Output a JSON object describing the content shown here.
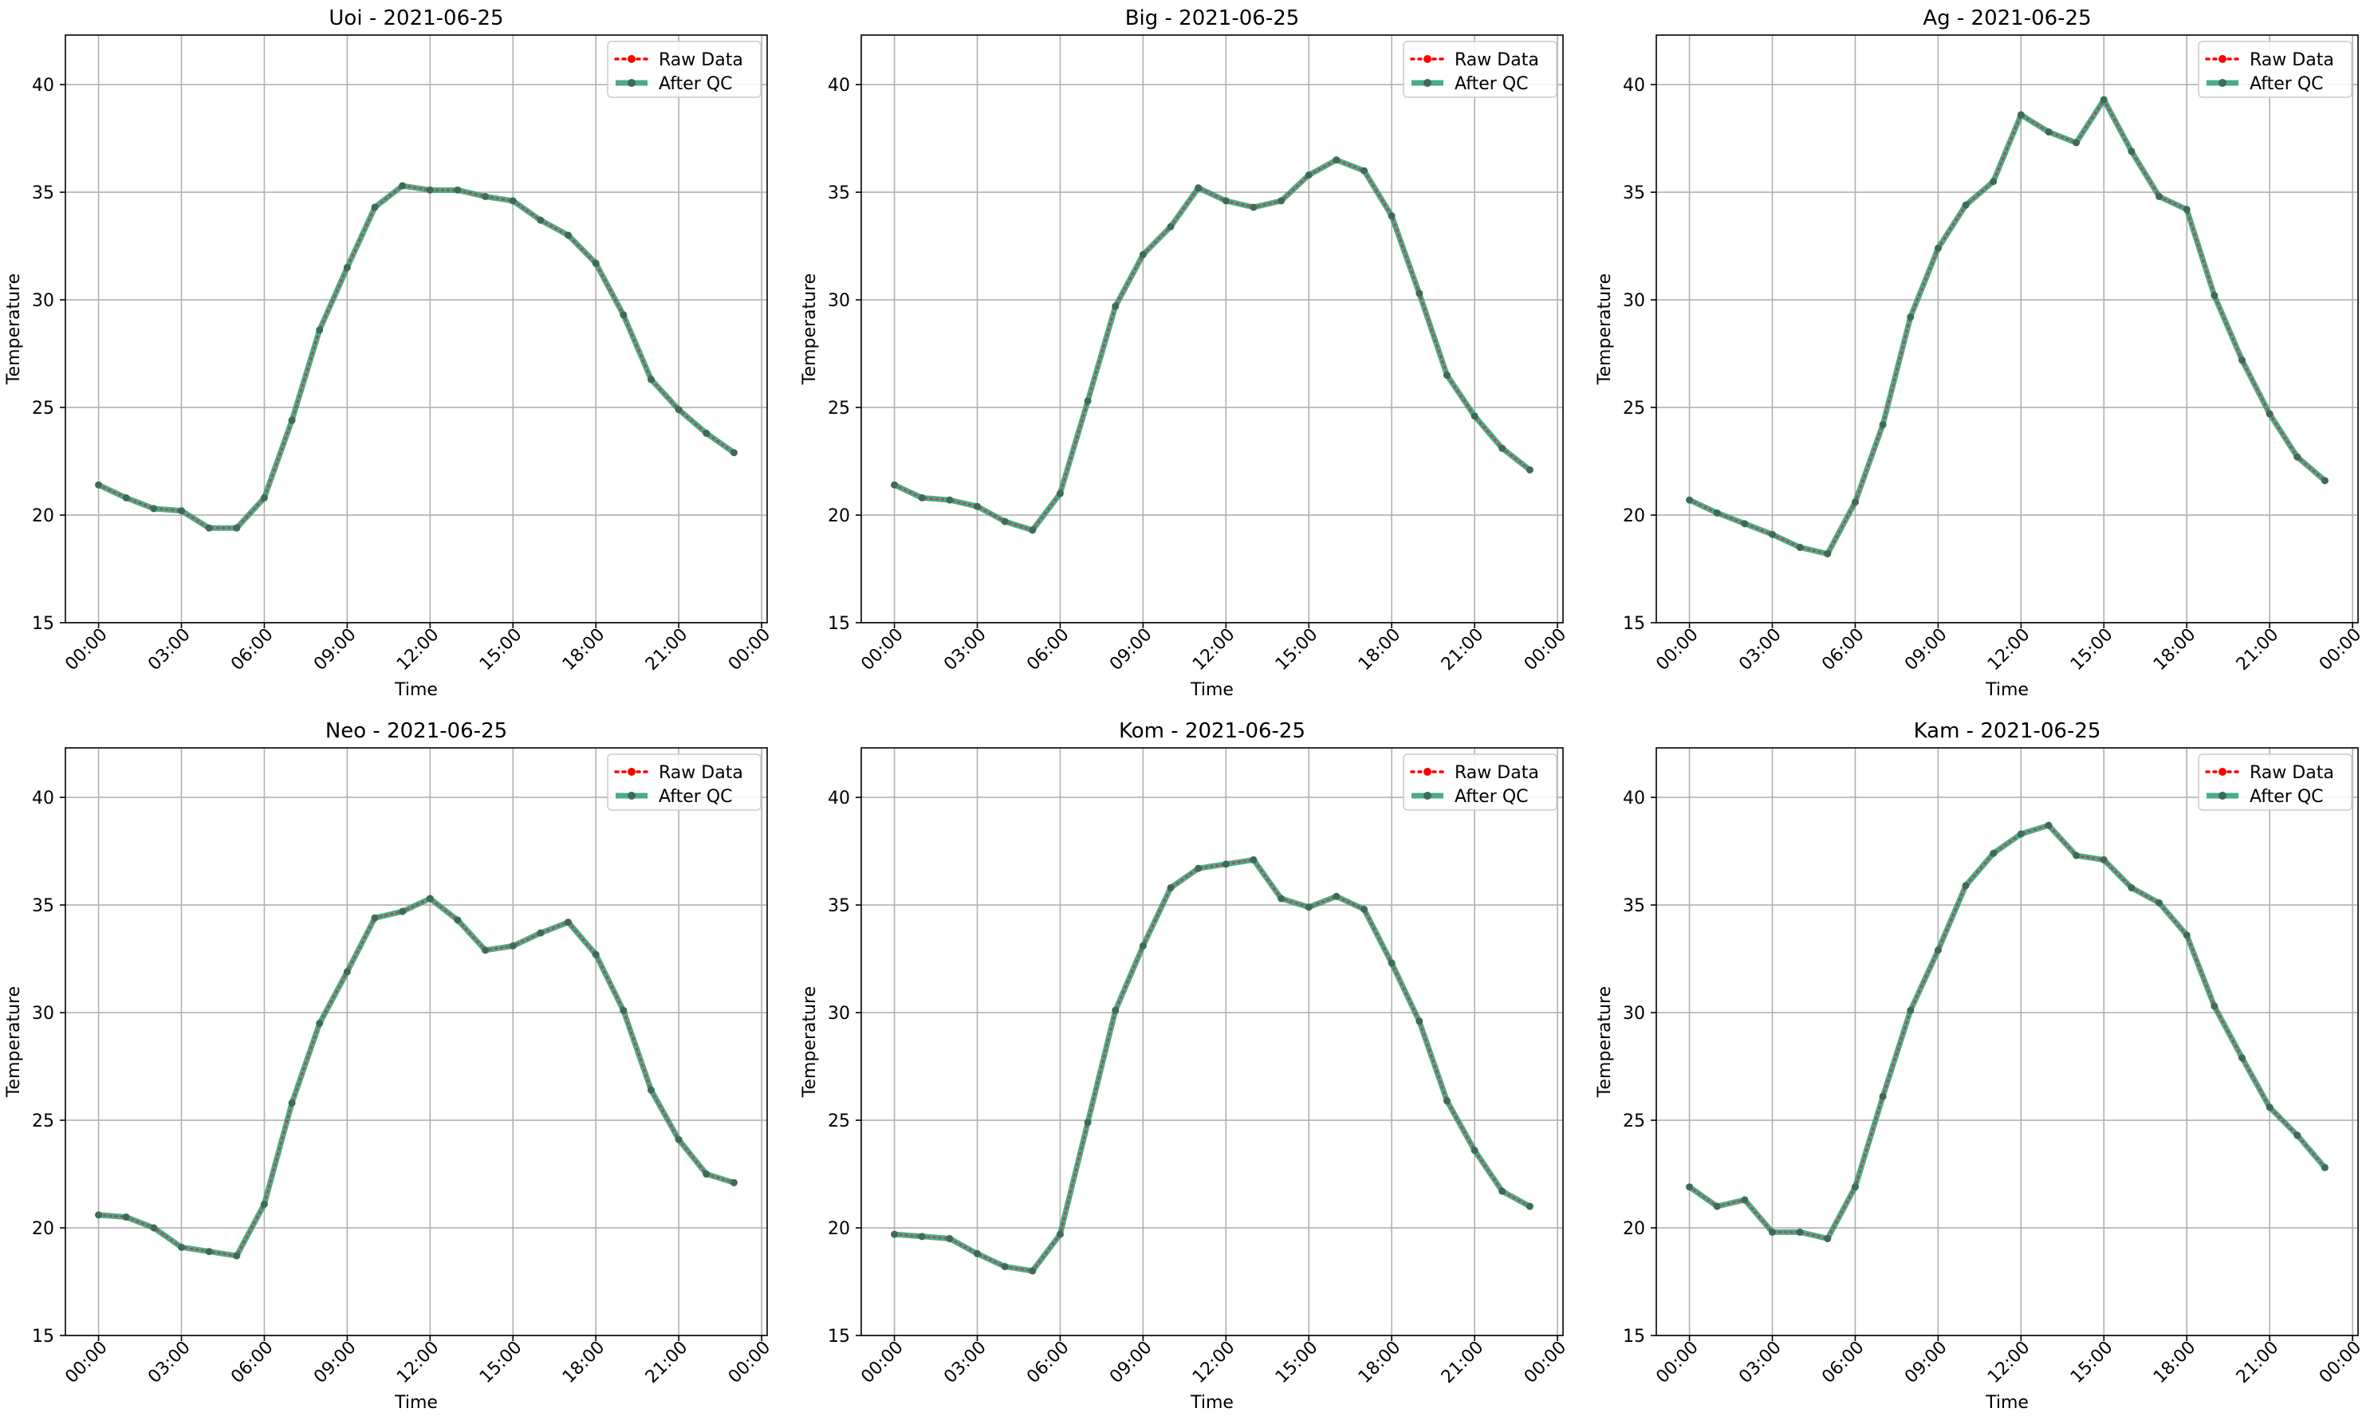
{
  "chart_data": [
    {
      "type": "line",
      "title": "Uoi - 2021-06-25",
      "xlabel": "Time",
      "ylabel": "Temperature",
      "x": [
        0,
        1,
        2,
        3,
        4,
        5,
        6,
        7,
        8,
        9,
        10,
        11,
        12,
        13,
        14,
        15,
        16,
        17,
        18,
        19,
        20,
        21,
        22,
        23
      ],
      "xticks": [
        "00:00",
        "03:00",
        "06:00",
        "09:00",
        "12:00",
        "15:00",
        "18:00",
        "21:00",
        "00:00"
      ],
      "yticks": [
        15,
        20,
        25,
        30,
        35,
        40
      ],
      "ylim": [
        15,
        42.3
      ],
      "grid": true,
      "legend": "top-right",
      "series": [
        {
          "name": "Raw Data",
          "color": "#ff0000",
          "style": "dotted",
          "values": [
            21.4,
            20.8,
            20.3,
            20.2,
            19.4,
            19.4,
            20.8,
            24.4,
            28.6,
            31.5,
            34.3,
            35.3,
            35.1,
            35.1,
            34.8,
            34.6,
            33.7,
            33.0,
            31.7,
            29.3,
            26.3,
            24.9,
            23.8,
            22.9
          ]
        },
        {
          "name": "After QC",
          "color": "#2a9d7a",
          "style": "solid",
          "values": [
            21.4,
            20.8,
            20.3,
            20.2,
            19.4,
            19.4,
            20.8,
            24.4,
            28.6,
            31.5,
            34.3,
            35.3,
            35.1,
            35.1,
            34.8,
            34.6,
            33.7,
            33.0,
            31.7,
            29.3,
            26.3,
            24.9,
            23.8,
            22.9
          ]
        }
      ]
    },
    {
      "type": "line",
      "title": "Big - 2021-06-25",
      "xlabel": "Time",
      "ylabel": "Temperature",
      "x": [
        0,
        1,
        2,
        3,
        4,
        5,
        6,
        7,
        8,
        9,
        10,
        11,
        12,
        13,
        14,
        15,
        16,
        17,
        18,
        19,
        20,
        21,
        22,
        23
      ],
      "xticks": [
        "00:00",
        "03:00",
        "06:00",
        "09:00",
        "12:00",
        "15:00",
        "18:00",
        "21:00",
        "00:00"
      ],
      "yticks": [
        15,
        20,
        25,
        30,
        35,
        40
      ],
      "ylim": [
        15,
        42.3
      ],
      "grid": true,
      "legend": "top-right",
      "series": [
        {
          "name": "Raw Data",
          "color": "#ff0000",
          "style": "dotted",
          "values": [
            21.4,
            20.8,
            20.7,
            20.4,
            19.7,
            19.3,
            21.0,
            25.3,
            29.7,
            32.1,
            33.4,
            35.2,
            34.6,
            34.3,
            34.6,
            35.8,
            36.5,
            36.0,
            33.9,
            30.3,
            26.5,
            24.6,
            23.1,
            22.1
          ]
        },
        {
          "name": "After QC",
          "color": "#2a9d7a",
          "style": "solid",
          "values": [
            21.4,
            20.8,
            20.7,
            20.4,
            19.7,
            19.3,
            21.0,
            25.3,
            29.7,
            32.1,
            33.4,
            35.2,
            34.6,
            34.3,
            34.6,
            35.8,
            36.5,
            36.0,
            33.9,
            30.3,
            26.5,
            24.6,
            23.1,
            22.1
          ]
        }
      ]
    },
    {
      "type": "line",
      "title": "Ag - 2021-06-25",
      "xlabel": "Time",
      "ylabel": "Temperature",
      "x": [
        0,
        1,
        2,
        3,
        4,
        5,
        6,
        7,
        8,
        9,
        10,
        11,
        12,
        13,
        14,
        15,
        16,
        17,
        18,
        19,
        20,
        21,
        22,
        23
      ],
      "xticks": [
        "00:00",
        "03:00",
        "06:00",
        "09:00",
        "12:00",
        "15:00",
        "18:00",
        "21:00",
        "00:00"
      ],
      "yticks": [
        15,
        20,
        25,
        30,
        35,
        40
      ],
      "ylim": [
        15,
        42.3
      ],
      "grid": true,
      "legend": "top-right",
      "series": [
        {
          "name": "Raw Data",
          "color": "#ff0000",
          "style": "dotted",
          "values": [
            20.7,
            20.1,
            19.6,
            19.1,
            18.5,
            18.2,
            20.6,
            24.2,
            29.2,
            32.4,
            34.4,
            35.5,
            38.6,
            37.8,
            37.3,
            39.3,
            36.9,
            34.8,
            34.2,
            30.2,
            27.2,
            24.7,
            22.7,
            21.6
          ]
        },
        {
          "name": "After QC",
          "color": "#2a9d7a",
          "style": "solid",
          "values": [
            20.7,
            20.1,
            19.6,
            19.1,
            18.5,
            18.2,
            20.6,
            24.2,
            29.2,
            32.4,
            34.4,
            35.5,
            38.6,
            37.8,
            37.3,
            39.3,
            36.9,
            34.8,
            34.2,
            30.2,
            27.2,
            24.7,
            22.7,
            21.6
          ]
        }
      ]
    },
    {
      "type": "line",
      "title": "Neo - 2021-06-25",
      "xlabel": "Time",
      "ylabel": "Temperature",
      "x": [
        0,
        1,
        2,
        3,
        4,
        5,
        6,
        7,
        8,
        9,
        10,
        11,
        12,
        13,
        14,
        15,
        16,
        17,
        18,
        19,
        20,
        21,
        22,
        23
      ],
      "xticks": [
        "00:00",
        "03:00",
        "06:00",
        "09:00",
        "12:00",
        "15:00",
        "18:00",
        "21:00",
        "00:00"
      ],
      "yticks": [
        15,
        20,
        25,
        30,
        35,
        40
      ],
      "ylim": [
        15,
        42.3
      ],
      "grid": true,
      "legend": "top-right",
      "series": [
        {
          "name": "Raw Data",
          "color": "#ff0000",
          "style": "dotted",
          "values": [
            20.6,
            20.5,
            20.0,
            19.1,
            18.9,
            18.7,
            21.1,
            25.8,
            29.5,
            31.9,
            34.4,
            34.7,
            35.3,
            34.3,
            32.9,
            33.1,
            33.7,
            34.2,
            32.7,
            30.1,
            26.4,
            24.1,
            22.5,
            22.1
          ]
        },
        {
          "name": "After QC",
          "color": "#2a9d7a",
          "style": "solid",
          "values": [
            20.6,
            20.5,
            20.0,
            19.1,
            18.9,
            18.7,
            21.1,
            25.8,
            29.5,
            31.9,
            34.4,
            34.7,
            35.3,
            34.3,
            32.9,
            33.1,
            33.7,
            34.2,
            32.7,
            30.1,
            26.4,
            24.1,
            22.5,
            22.1
          ]
        }
      ]
    },
    {
      "type": "line",
      "title": "Kom - 2021-06-25",
      "xlabel": "Time",
      "ylabel": "Temperature",
      "x": [
        0,
        1,
        2,
        3,
        4,
        5,
        6,
        7,
        8,
        9,
        10,
        11,
        12,
        13,
        14,
        15,
        16,
        17,
        18,
        19,
        20,
        21,
        22,
        23
      ],
      "xticks": [
        "00:00",
        "03:00",
        "06:00",
        "09:00",
        "12:00",
        "15:00",
        "18:00",
        "21:00",
        "00:00"
      ],
      "yticks": [
        15,
        20,
        25,
        30,
        35,
        40
      ],
      "ylim": [
        15,
        42.3
      ],
      "grid": true,
      "legend": "top-right",
      "series": [
        {
          "name": "Raw Data",
          "color": "#ff0000",
          "style": "dotted",
          "values": [
            19.7,
            19.6,
            19.5,
            18.8,
            18.2,
            18.0,
            19.7,
            24.9,
            30.1,
            33.1,
            35.8,
            36.7,
            36.9,
            37.1,
            35.3,
            34.9,
            35.4,
            34.8,
            32.3,
            29.6,
            25.9,
            23.6,
            21.7,
            21.0
          ]
        },
        {
          "name": "After QC",
          "color": "#2a9d7a",
          "style": "solid",
          "values": [
            19.7,
            19.6,
            19.5,
            18.8,
            18.2,
            18.0,
            19.7,
            24.9,
            30.1,
            33.1,
            35.8,
            36.7,
            36.9,
            37.1,
            35.3,
            34.9,
            35.4,
            34.8,
            32.3,
            29.6,
            25.9,
            23.6,
            21.7,
            21.0
          ]
        }
      ]
    },
    {
      "type": "line",
      "title": "Kam - 2021-06-25",
      "xlabel": "Time",
      "ylabel": "Temperature",
      "x": [
        0,
        1,
        2,
        3,
        4,
        5,
        6,
        7,
        8,
        9,
        10,
        11,
        12,
        13,
        14,
        15,
        16,
        17,
        18,
        19,
        20,
        21,
        22,
        23
      ],
      "xticks": [
        "00:00",
        "03:00",
        "06:00",
        "09:00",
        "12:00",
        "15:00",
        "18:00",
        "21:00",
        "00:00"
      ],
      "yticks": [
        15,
        20,
        25,
        30,
        35,
        40
      ],
      "ylim": [
        15,
        42.3
      ],
      "grid": true,
      "legend": "top-right",
      "series": [
        {
          "name": "Raw Data",
          "color": "#ff0000",
          "style": "dotted",
          "values": [
            21.9,
            21.0,
            21.3,
            19.8,
            19.8,
            19.5,
            21.9,
            26.1,
            30.1,
            32.9,
            35.9,
            37.4,
            38.3,
            38.7,
            37.3,
            37.1,
            35.8,
            35.1,
            33.6,
            30.3,
            27.9,
            25.6,
            24.3,
            22.8
          ]
        },
        {
          "name": "After QC",
          "color": "#2a9d7a",
          "style": "solid",
          "values": [
            21.9,
            21.0,
            21.3,
            19.8,
            19.8,
            19.5,
            21.9,
            26.1,
            30.1,
            32.9,
            35.9,
            37.4,
            38.3,
            38.7,
            37.3,
            37.1,
            35.8,
            35.1,
            33.6,
            30.3,
            27.9,
            25.6,
            24.3,
            22.8
          ]
        }
      ]
    }
  ]
}
